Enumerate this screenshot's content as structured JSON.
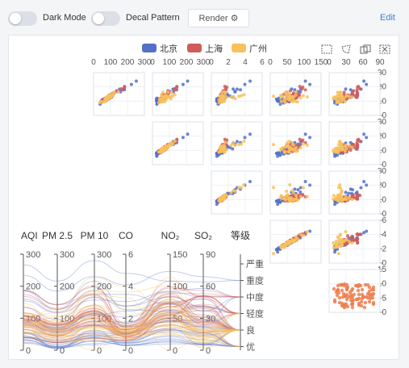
{
  "toolbar": {
    "dark_mode_label": "Dark Mode",
    "decal_label": "Decal Pattern",
    "render_label": "Render",
    "render_icon": "gear-icon",
    "edit_label": "Edit"
  },
  "chart_data": {
    "type": "scatter",
    "legend": {
      "position": "top",
      "items": [
        {
          "name": "北京",
          "color": "#5470c6"
        },
        {
          "name": "上海",
          "color": "#d05b5b"
        },
        {
          "name": "广州",
          "color": "#f7c15e"
        }
      ]
    },
    "toolbox_icons": [
      "brush-rect-icon",
      "brush-polygon-icon",
      "brush-keep-icon",
      "brush-clear-icon"
    ],
    "scatter_matrix": {
      "dimensions": [
        {
          "name": "AQI",
          "range": [
            0,
            300
          ],
          "ticks": [
            "0",
            "100",
            "200",
            "300"
          ]
        },
        {
          "name": "PM2.5",
          "range": [
            0,
            300
          ],
          "ticks": [
            "0",
            "100",
            "200",
            "300"
          ]
        },
        {
          "name": "CO",
          "range": [
            0,
            6
          ],
          "ticks": [
            "0",
            "2",
            "4",
            "6"
          ]
        },
        {
          "name": "NO2",
          "range": [
            0,
            150
          ],
          "ticks": [
            "0",
            "50",
            "100",
            "150"
          ]
        },
        {
          "name": "SO2",
          "range": [
            0,
            90
          ],
          "ticks": [
            "0",
            "30",
            "60",
            "90"
          ]
        }
      ],
      "row_axes": [
        {
          "range": [
            0,
            30
          ],
          "ticks": [
            "0",
            "10",
            "20",
            "30"
          ]
        },
        {
          "range": [
            0,
            30
          ],
          "ticks": [
            "0",
            "10",
            "20",
            "30"
          ]
        },
        {
          "range": [
            0,
            30
          ],
          "ticks": [
            "0",
            "10",
            "20",
            "30"
          ]
        },
        {
          "range": [
            0,
            6
          ],
          "ticks": [
            "0",
            "2",
            "4",
            "6"
          ]
        },
        {
          "range": [
            0,
            15
          ],
          "ticks": [
            "0",
            "5",
            "10",
            "15"
          ]
        }
      ]
    },
    "parallel": {
      "axes": [
        {
          "name": "AQI",
          "max": 300,
          "ticks": [
            "300",
            "200",
            "100",
            "0"
          ]
        },
        {
          "name": "PM 2.5",
          "max": 300,
          "ticks": [
            "300",
            "200",
            "100",
            "0"
          ]
        },
        {
          "name": "PM 10",
          "max": 300,
          "ticks": [
            "300",
            "200",
            "100",
            "0"
          ]
        },
        {
          "name": "CO",
          "max": 6,
          "ticks": [
            "6",
            "4",
            "2",
            "0"
          ]
        },
        {
          "name": "NO₂",
          "max": 150,
          "ticks": [
            "150",
            "100",
            "50",
            "0"
          ]
        },
        {
          "name": "SO₂",
          "max": 90,
          "ticks": [
            "90",
            "60",
            "30",
            "0"
          ]
        },
        {
          "name": "等级",
          "categories": [
            "严重",
            "重度",
            "中度",
            "轻度",
            "良",
            "优"
          ]
        }
      ]
    },
    "sample_points": {
      "北京": [
        [
          55,
          9,
          56,
          0.46,
          18,
          6
        ],
        [
          25,
          11,
          21,
          0.65,
          34,
          5
        ],
        [
          56,
          7,
          63,
          0.3,
          14,
          5
        ],
        [
          33,
          7,
          29,
          0.33,
          16,
          6
        ],
        [
          42,
          24,
          44,
          0.76,
          40,
          16
        ],
        [
          82,
          58,
          90,
          1.77,
          68,
          33
        ],
        [
          74,
          49,
          77,
          1.46,
          48,
          27
        ],
        [
          78,
          55,
          80,
          1.29,
          59,
          29
        ],
        [
          267,
          216,
          280,
          4.8,
          108,
          64
        ],
        [
          185,
          127,
          216,
          2.52,
          61,
          27
        ],
        [
          39,
          19,
          38,
          0.57,
          31,
          15
        ],
        [
          41,
          11,
          40,
          0.43,
          21,
          7
        ],
        [
          64,
          38,
          74,
          1.04,
          46,
          22
        ],
        [
          108,
          79,
          120,
          1.7,
          75,
          41
        ],
        [
          108,
          63,
          116,
          1.48,
          44,
          26
        ],
        [
          33,
          6,
          29,
          0.34,
          13,
          5
        ],
        [
          94,
          66,
          110,
          1.54,
          62,
          31
        ],
        [
          186,
          142,
          176,
          3.49,
          72,
          37
        ],
        [
          57,
          31,
          54,
          0.96,
          32,
          14
        ],
        [
          22,
          8,
          17,
          0.48,
          23,
          10
        ],
        [
          39,
          15,
          36,
          0.61,
          29,
          13
        ],
        [
          94,
          69,
          114,
          2.08,
          73,
          39
        ],
        [
          99,
          73,
          110,
          2.43,
          76,
          48
        ],
        [
          31,
          12,
          30,
          0.5,
          32,
          16
        ],
        [
          42,
          27,
          43,
          1,
          53,
          22
        ],
        [
          154,
          117,
          157,
          3.05,
          92,
          58
        ],
        [
          234,
          185,
          230,
          4.09,
          123,
          69
        ],
        [
          160,
          120,
          186,
          2.77,
          91,
          50
        ],
        [
          134,
          96,
          165,
          2.76,
          83,
          41
        ],
        [
          52,
          24,
          60,
          1.03,
          50,
          21
        ],
        [
          46,
          5,
          49,
          0.28,
          10,
          6
        ]
      ],
      "上海": [
        [
          91,
          45,
          125,
          0.82,
          34,
          23
        ],
        [
          65,
          27,
          78,
          0.86,
          45,
          29
        ],
        [
          83,
          60,
          84,
          1.09,
          73,
          27
        ],
        [
          109,
          81,
          121,
          1.28,
          68,
          51
        ],
        [
          106,
          77,
          114,
          1.07,
          55,
          51
        ],
        [
          109,
          81,
          121,
          1.28,
          68,
          51
        ],
        [
          106,
          77,
          114,
          1.07,
          55,
          51
        ],
        [
          89,
          65,
          78,
          0.86,
          51,
          26
        ],
        [
          53,
          33,
          47,
          0.64,
          50,
          17
        ],
        [
          80,
          55,
          80,
          1.01,
          75,
          24
        ],
        [
          117,
          81,
          124,
          1.03,
          45,
          24
        ],
        [
          99,
          71,
          142,
          1.1,
          62,
          42
        ],
        [
          95,
          69,
          130,
          1.28,
          74,
          50
        ],
        [
          116,
          87,
          131,
          1.47,
          84,
          40
        ],
        [
          108,
          80,
          121,
          1.3,
          85,
          37
        ],
        [
          134,
          83,
          167,
          1.16,
          57,
          43
        ],
        [
          79,
          43,
          107,
          1.05,
          59,
          37
        ],
        [
          71,
          46,
          89,
          0.86,
          64,
          25
        ],
        [
          97,
          71,
          113,
          1.17,
          88,
          31
        ],
        [
          84,
          57,
          91,
          0.85,
          55,
          31
        ],
        [
          87,
          63,
          101,
          0.9,
          56,
          41
        ],
        [
          104,
          77,
          119,
          1.09,
          73,
          48
        ],
        [
          87,
          62,
          100,
          1,
          72,
          28
        ],
        [
          168,
          128,
          172,
          1.49,
          97,
          56
        ],
        [
          65,
          45,
          51,
          0.74,
          39,
          17
        ],
        [
          39,
          24,
          38,
          0.61,
          47,
          17
        ],
        [
          39,
          24,
          39,
          0.59,
          50,
          19
        ],
        [
          93,
          68,
          96,
          1.05,
          79,
          29
        ],
        [
          188,
          143,
          197,
          1.66,
          99,
          51
        ],
        [
          174,
          131,
          174,
          1.55,
          108,
          50
        ],
        [
          187,
          143,
          201,
          1.39,
          89,
          53
        ]
      ],
      "广州": [
        [
          26,
          37,
          27,
          1.163,
          27,
          13
        ],
        [
          85,
          62,
          71,
          1.195,
          60,
          8
        ],
        [
          78,
          38,
          74,
          1.363,
          37,
          7
        ],
        [
          21,
          21,
          36,
          0.634,
          40,
          9
        ],
        [
          41,
          42,
          46,
          0.915,
          81,
          13
        ],
        [
          56,
          52,
          69,
          1.067,
          92,
          16
        ],
        [
          64,
          30,
          28,
          0.924,
          51,
          2
        ],
        [
          55,
          48,
          74,
          1.236,
          75,
          26
        ],
        [
          76,
          85,
          113,
          1.237,
          114,
          27
        ],
        [
          91,
          81,
          104,
          1.041,
          56,
          40
        ],
        [
          84,
          39,
          60,
          0.964,
          25,
          11
        ],
        [
          64,
          51,
          101,
          0.862,
          58,
          23
        ],
        [
          70,
          69,
          130,
          1.198,
          68,
          20
        ],
        [
          77,
          105,
          178,
          2.549,
          64,
          19
        ],
        [
          109,
          68,
          87,
          0.996,
          74,
          29
        ],
        [
          73,
          68,
          97,
          0.905,
          51,
          34
        ],
        [
          54,
          27,
          47,
          0.592,
          53,
          12
        ],
        [
          51,
          61,
          97,
          0.811,
          65,
          19
        ],
        [
          91,
          71,
          121,
          1.374,
          43,
          18
        ],
        [
          73,
          102,
          182,
          2.787,
          44,
          19
        ],
        [
          73,
          50,
          76,
          0.717,
          31,
          20
        ],
        [
          84,
          94,
          140,
          2.238,
          68,
          18
        ],
        [
          93,
          77,
          104,
          1.165,
          53,
          7
        ],
        [
          99,
          130,
          227,
          3.97,
          55,
          15
        ],
        [
          146,
          84,
          139,
          1.094,
          40,
          17
        ],
        [
          113,
          108,
          137,
          1.481,
          48,
          15
        ],
        [
          81,
          48,
          62,
          1.619,
          26,
          3
        ],
        [
          56,
          48,
          68,
          1.336,
          37,
          9
        ],
        [
          82,
          92,
          174,
          3.29,
          0,
          13
        ],
        [
          106,
          116,
          188,
          3.628,
          101,
          16
        ],
        [
          118,
          50,
          0,
          1.383,
          76,
          11
        ]
      ]
    }
  }
}
